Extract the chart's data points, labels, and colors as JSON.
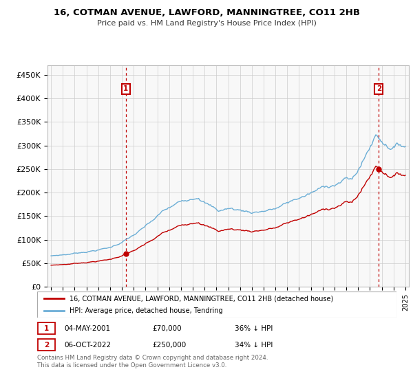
{
  "title": "16, COTMAN AVENUE, LAWFORD, MANNINGTREE, CO11 2HB",
  "subtitle": "Price paid vs. HM Land Registry's House Price Index (HPI)",
  "ylabel_ticks": [
    "£0",
    "£50K",
    "£100K",
    "£150K",
    "£200K",
    "£250K",
    "£300K",
    "£350K",
    "£400K",
    "£450K"
  ],
  "ytick_values": [
    0,
    50000,
    100000,
    150000,
    200000,
    250000,
    300000,
    350000,
    400000,
    450000
  ],
  "ylim": [
    0,
    470000
  ],
  "xlim_left": 1994.7,
  "xlim_right": 2025.3,
  "hpi_color": "#6baed6",
  "price_color": "#c00000",
  "vline_color": "#c00000",
  "sale1_year_val": 2001.333,
  "sale2_year_val": 2022.75,
  "sale1_price": 70000,
  "sale2_price": 250000,
  "point1_date": "04-MAY-2001",
  "point1_price": "£70,000",
  "point1_hpi": "36% ↓ HPI",
  "point2_date": "06-OCT-2022",
  "point2_price": "£250,000",
  "point2_hpi": "34% ↓ HPI",
  "legend_line1": "16, COTMAN AVENUE, LAWFORD, MANNINGTREE, CO11 2HB (detached house)",
  "legend_line2": "HPI: Average price, detached house, Tendring",
  "footer": "Contains HM Land Registry data © Crown copyright and database right 2024.\nThis data is licensed under the Open Government Licence v3.0.",
  "bg_color": "#f8f8f8",
  "grid_color": "#cccccc"
}
